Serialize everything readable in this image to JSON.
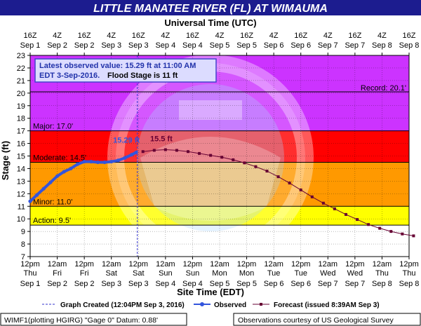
{
  "chart_data": {
    "type": "line",
    "title": "LITTLE MANATEE RIVER (FL) AT WIMAUMA",
    "top_axis_title": "Universal Time (UTC)",
    "xlabel": "Site Time (EDT)",
    "ylabel": "Stage (ft)",
    "ylim": [
      7,
      23
    ],
    "y_ticks": [
      7,
      8,
      9,
      10,
      11,
      12,
      13,
      14,
      15,
      16,
      17,
      18,
      19,
      20,
      21,
      22,
      23
    ],
    "x_range_hours": [
      0,
      168
    ],
    "x_ticks_bottom": [
      {
        "t": 0,
        "time": "12pm",
        "day": "Thu",
        "date": "Sep 1"
      },
      {
        "t": 12,
        "time": "12am",
        "day": "Fri",
        "date": "Sep 2"
      },
      {
        "t": 24,
        "time": "12pm",
        "day": "Fri",
        "date": "Sep 2"
      },
      {
        "t": 36,
        "time": "12am",
        "day": "Sat",
        "date": "Sep 3"
      },
      {
        "t": 48,
        "time": "12pm",
        "day": "Sat",
        "date": "Sep 3"
      },
      {
        "t": 60,
        "time": "12am",
        "day": "Sun",
        "date": "Sep 4"
      },
      {
        "t": 72,
        "time": "12pm",
        "day": "Sun",
        "date": "Sep 4"
      },
      {
        "t": 84,
        "time": "12am",
        "day": "Mon",
        "date": "Sep 5"
      },
      {
        "t": 96,
        "time": "12pm",
        "day": "Mon",
        "date": "Sep 5"
      },
      {
        "t": 108,
        "time": "12am",
        "day": "Tue",
        "date": "Sep 6"
      },
      {
        "t": 120,
        "time": "12pm",
        "day": "Tue",
        "date": "Sep 6"
      },
      {
        "t": 132,
        "time": "12am",
        "day": "Wed",
        "date": "Sep 7"
      },
      {
        "t": 144,
        "time": "12pm",
        "day": "Wed",
        "date": "Sep 7"
      },
      {
        "t": 156,
        "time": "12am",
        "day": "Thu",
        "date": "Sep 8"
      },
      {
        "t": 168,
        "time": "12pm",
        "day": "Thu",
        "date": "Sep 8"
      }
    ],
    "x_ticks_top": [
      {
        "t": 0,
        "time": "16Z",
        "date": "Sep 1"
      },
      {
        "t": 12,
        "time": "4Z",
        "date": "Sep 2"
      },
      {
        "t": 24,
        "time": "16Z",
        "date": "Sep 2"
      },
      {
        "t": 36,
        "time": "4Z",
        "date": "Sep 3"
      },
      {
        "t": 48,
        "time": "16Z",
        "date": "Sep 3"
      },
      {
        "t": 60,
        "time": "4Z",
        "date": "Sep 4"
      },
      {
        "t": 72,
        "time": "16Z",
        "date": "Sep 4"
      },
      {
        "t": 84,
        "time": "4Z",
        "date": "Sep 5"
      },
      {
        "t": 96,
        "time": "16Z",
        "date": "Sep 5"
      },
      {
        "t": 108,
        "time": "4Z",
        "date": "Sep 6"
      },
      {
        "t": 120,
        "time": "16Z",
        "date": "Sep 6"
      },
      {
        "t": 132,
        "time": "4Z",
        "date": "Sep 7"
      },
      {
        "t": 144,
        "time": "16Z",
        "date": "Sep 7"
      },
      {
        "t": 156,
        "time": "4Z",
        "date": "Sep 8"
      },
      {
        "t": 168,
        "time": "16Z",
        "date": "Sep 8"
      }
    ],
    "flood_categories": [
      {
        "name": "Action",
        "label": "Action: 9.5'",
        "from": 9.5,
        "to": 11,
        "color": "#ffff00"
      },
      {
        "name": "Minor",
        "label": "Minor: 11.0'",
        "from": 11,
        "to": 14.5,
        "color": "#ff9900"
      },
      {
        "name": "Moderate",
        "label": "Moderate: 14.5'",
        "from": 14.5,
        "to": 17,
        "color": "#ff0000"
      },
      {
        "name": "Major",
        "label": "Major: 17.0'",
        "from": 17,
        "to": 23,
        "color": "#cc33ff"
      }
    ],
    "record": {
      "label": "Record: 20.1'",
      "value": 20.1
    },
    "graph_created_t": 47.5,
    "series": [
      {
        "name": "Observed",
        "color": "#3355dd",
        "points": [
          [
            0,
            11.4
          ],
          [
            3,
            11.9
          ],
          [
            6,
            12.4
          ],
          [
            9,
            12.9
          ],
          [
            12,
            13.4
          ],
          [
            15,
            13.75
          ],
          [
            18,
            14.0
          ],
          [
            21,
            14.35
          ],
          [
            24,
            14.55
          ],
          [
            27,
            14.55
          ],
          [
            30,
            14.5
          ],
          [
            33,
            14.5
          ],
          [
            36,
            14.55
          ],
          [
            39,
            14.65
          ],
          [
            42,
            14.85
          ],
          [
            45,
            15.1
          ],
          [
            47,
            15.29
          ]
        ],
        "peak_label": "15.29 ft"
      },
      {
        "name": "Forecast (issued 8:39AM Sep 3)",
        "color": "#660033",
        "points": [
          [
            50,
            15.35
          ],
          [
            55,
            15.45
          ],
          [
            60,
            15.5
          ],
          [
            65,
            15.45
          ],
          [
            70,
            15.35
          ],
          [
            75,
            15.2
          ],
          [
            80,
            15.05
          ],
          [
            85,
            14.9
          ],
          [
            90,
            14.7
          ],
          [
            95,
            14.45
          ],
          [
            100,
            14.15
          ],
          [
            105,
            13.8
          ],
          [
            110,
            13.35
          ],
          [
            115,
            12.85
          ],
          [
            120,
            12.3
          ],
          [
            125,
            11.75
          ],
          [
            130,
            11.25
          ],
          [
            135,
            10.8
          ],
          [
            140,
            10.35
          ],
          [
            145,
            9.95
          ],
          [
            150,
            9.55
          ],
          [
            155,
            9.25
          ],
          [
            160,
            9.0
          ],
          [
            165,
            8.8
          ],
          [
            170,
            8.65
          ]
        ],
        "peak_label": "15.5 ft"
      }
    ],
    "annotation_lines": [
      "Latest observed value: 15.29 ft at 11:00 AM",
      "EDT 3-Sep-2016.",
      "Flood Stage is 11 ft"
    ]
  },
  "legend": {
    "graph_created": "Graph Created (12:04PM Sep 3, 2016)",
    "observed": "Observed",
    "forecast": "Forecast (issued 8:39AM Sep 3)"
  },
  "footer": {
    "left": "WIMF1(plotting HGIRG) \"Gage 0\" Datum: 0.88'",
    "right": "Observations courtesy of US Geological Survey"
  },
  "colors": {
    "title_bar": "#1c1c8f",
    "below_action": "#ffffff",
    "observed": "#3355dd",
    "forecast": "#660033",
    "annotation_box_fill": "#dcdcff",
    "annotation_text": "#2233aa",
    "watermark": "NOAA / U.S. Department of Commerce"
  }
}
